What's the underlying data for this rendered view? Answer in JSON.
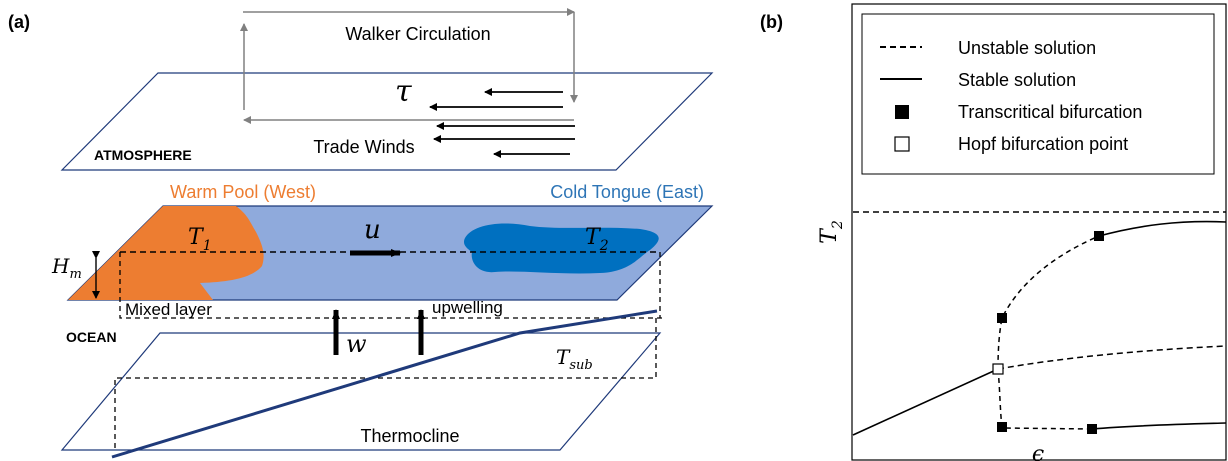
{
  "panel_a": {
    "label": "(a)",
    "walker": "Walker Circulation",
    "tau": "τ",
    "trade_winds": "Trade Winds",
    "atmosphere": "ATMOSPHERE",
    "warm_pool": "Warm Pool (West)",
    "cold_tongue": "Cold Tongue (East)",
    "t1": "T",
    "t1_sub": "1",
    "t2": "T",
    "t2_sub": "2",
    "u": "u",
    "hm": "H",
    "hm_sub": "m",
    "mixed_layer": "Mixed layer",
    "upwelling": "upwelling",
    "ocean": "OCEAN",
    "w": "w",
    "tsub": "T",
    "tsub_sub": "sub",
    "thermocline": "Thermocline",
    "colors": {
      "warm": "#ED7D31",
      "ocean": "#8FAADC",
      "cold": "#0070C0",
      "title_warm": "#ED7D31",
      "title_cold": "#2E75B6",
      "thermocline": "#1F3A7A"
    }
  },
  "panel_b": {
    "label": "(b)",
    "legend": {
      "unstable": "Unstable solution",
      "stable": "Stable solution",
      "transcritical": "Transcritical bifurcation",
      "hopf": "Hopf bifurcation point"
    },
    "y_label": "T",
    "y_label_sub": "2",
    "x_label": "ϵ"
  }
}
